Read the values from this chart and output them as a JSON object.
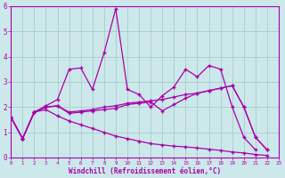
{
  "bg_color": "#cce8ea",
  "line_color": "#aa00aa",
  "grid_color": "#aacccc",
  "xlabel": "Windchill (Refroidissement éolien,°C)",
  "xlim": [
    0,
    23
  ],
  "ylim": [
    0,
    6
  ],
  "yticks": [
    0,
    1,
    2,
    3,
    4,
    5,
    6
  ],
  "xticks": [
    0,
    1,
    2,
    3,
    4,
    5,
    6,
    7,
    8,
    9,
    10,
    11,
    12,
    13,
    14,
    15,
    16,
    17,
    18,
    19,
    20,
    21,
    22,
    23
  ],
  "series1_x": [
    0,
    1,
    2,
    3,
    4,
    5,
    6,
    7,
    8,
    9,
    10,
    11,
    12,
    13,
    14,
    15,
    16,
    17,
    18,
    19,
    20,
    21
  ],
  "series1_y": [
    1.6,
    0.75,
    1.8,
    2.05,
    2.3,
    3.5,
    3.55,
    2.7,
    4.15,
    5.9,
    2.7,
    2.5,
    2.0,
    2.45,
    2.8,
    3.5,
    3.2,
    3.65,
    3.5,
    2.0,
    0.8,
    0.3
  ],
  "series2_x": [
    0,
    1,
    2,
    3,
    4,
    5,
    6,
    7,
    8,
    9,
    10,
    11,
    12,
    13,
    14,
    15,
    16,
    17,
    18,
    19,
    20,
    21,
    22
  ],
  "series2_y": [
    1.6,
    0.75,
    1.8,
    2.0,
    2.05,
    1.8,
    1.85,
    1.9,
    2.0,
    2.05,
    2.15,
    2.2,
    2.25,
    2.3,
    2.4,
    2.5,
    2.55,
    2.65,
    2.75,
    2.85,
    2.0,
    0.8,
    0.3
  ],
  "series3_x": [
    0,
    1,
    2,
    3,
    4,
    5,
    6,
    7,
    8,
    9,
    10,
    11,
    12,
    13,
    14,
    15,
    16,
    17,
    18,
    19,
    20,
    21,
    22
  ],
  "series3_y": [
    1.6,
    0.75,
    1.8,
    2.0,
    2.05,
    1.75,
    1.8,
    1.85,
    1.9,
    1.95,
    2.1,
    2.15,
    2.2,
    1.85,
    2.1,
    2.35,
    2.55,
    2.65,
    2.75,
    2.85,
    2.0,
    0.8,
    0.3
  ],
  "series4_x": [
    0,
    1,
    2,
    3,
    4,
    5,
    6,
    7,
    8,
    9,
    10,
    11,
    12,
    13,
    14,
    15,
    16,
    17,
    18,
    19,
    20,
    21,
    22
  ],
  "series4_y": [
    1.6,
    0.75,
    1.8,
    1.9,
    1.65,
    1.45,
    1.3,
    1.15,
    1.0,
    0.85,
    0.75,
    0.65,
    0.55,
    0.5,
    0.45,
    0.42,
    0.38,
    0.33,
    0.28,
    0.22,
    0.18,
    0.12,
    0.08
  ]
}
